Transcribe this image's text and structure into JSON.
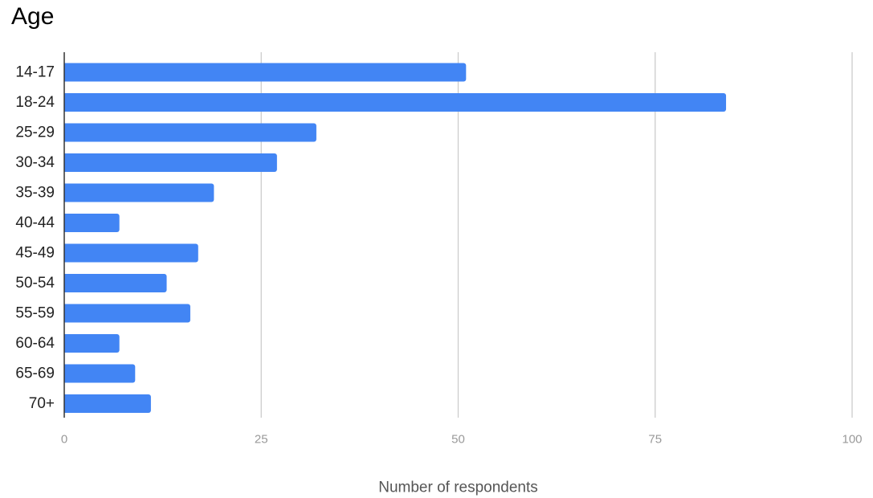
{
  "chart_data": {
    "type": "bar",
    "orientation": "horizontal",
    "title": "Age",
    "xlabel": "Number of respondents",
    "ylabel": "",
    "categories": [
      "14-17",
      "18-24",
      "25-29",
      "30-34",
      "35-39",
      "40-44",
      "45-49",
      "50-54",
      "55-59",
      "60-64",
      "65-69",
      "70+"
    ],
    "values": [
      51,
      84,
      32,
      27,
      19,
      7,
      17,
      13,
      16,
      7,
      9,
      11
    ],
    "xlim": [
      0,
      100
    ],
    "xticks": [
      "0",
      "25",
      "50",
      "75",
      "100"
    ],
    "grid": "vertical",
    "legend": "none",
    "colors": {
      "bar": "#4285f4",
      "grid": "#cccccc",
      "axis": "#333333",
      "category_label": "#222222",
      "tick_label": "#999999",
      "axis_title": "#555555"
    }
  }
}
